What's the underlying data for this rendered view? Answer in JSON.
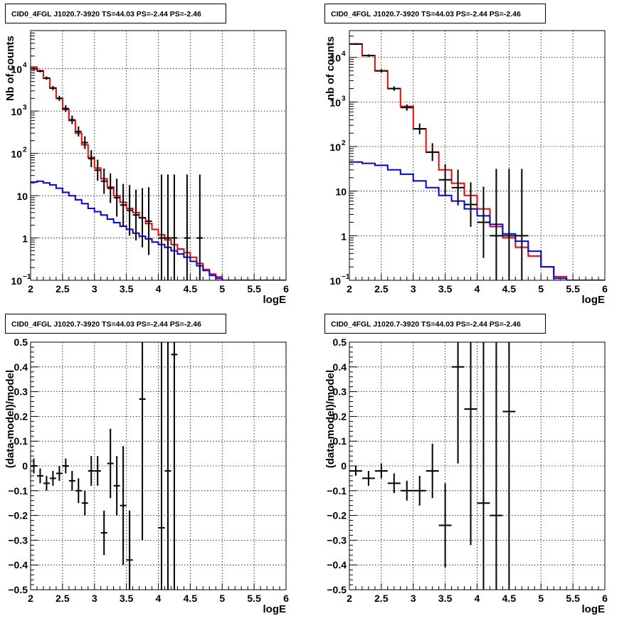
{
  "chart_data": [
    {
      "type": "line",
      "title": "CID0_4FGL J1020.7-3920 TS=44.03 PS=-2.44 PS=-2.46",
      "xlabel": "logE",
      "ylabel": "Nb of counts",
      "xlim": [
        2,
        6
      ],
      "ylim": [
        0.1,
        80000
      ],
      "yscale": "log",
      "grid": true,
      "x_ticks": [
        "2",
        "2.5",
        "3",
        "3.5",
        "4",
        "4.5",
        "5",
        "5.5",
        "6"
      ],
      "y_ticks": [
        {
          "v": 0.1,
          "label": "10",
          "sup": "−1"
        },
        {
          "v": 1,
          "label": "1",
          "sup": ""
        },
        {
          "v": 10,
          "label": "10",
          "sup": ""
        },
        {
          "v": 100,
          "label": "10",
          "sup": "2"
        },
        {
          "v": 1000,
          "label": "10",
          "sup": "3"
        },
        {
          "v": 10000,
          "label": "10",
          "sup": "4"
        }
      ],
      "series": [
        {
          "kind": "step",
          "color": "#ff0000",
          "edges": [
            2.0,
            2.1,
            2.2,
            2.3,
            2.4,
            2.5,
            2.6,
            2.7,
            2.8,
            2.9,
            3.0,
            3.1,
            3.2,
            3.3,
            3.4,
            3.5,
            3.6,
            3.7,
            3.8,
            3.9,
            4.0,
            4.1,
            4.2,
            4.3,
            4.4,
            4.5,
            4.6,
            4.7,
            4.8,
            4.9,
            5.0,
            5.1,
            5.2,
            5.3,
            5.4,
            5.5,
            5.6,
            5.7,
            5.8,
            5.9,
            6.0
          ],
          "values": [
            11000,
            9000,
            6000,
            3500,
            2000,
            1100,
            600,
            300,
            160,
            80,
            45,
            25,
            16,
            10,
            7,
            5,
            4,
            3,
            2.2,
            1.6,
            1.2,
            0.9,
            0.7,
            0.55,
            0.45,
            0.35,
            0.25,
            0.18,
            0.14,
            0.12,
            0.1,
            0.1,
            0.1,
            0.1,
            0.1,
            0.1,
            0.1,
            0.1,
            0.1,
            0.1
          ]
        },
        {
          "kind": "step",
          "color": "#0000ff",
          "edges": [
            2.0,
            2.1,
            2.2,
            2.3,
            2.4,
            2.5,
            2.6,
            2.7,
            2.8,
            2.9,
            3.0,
            3.1,
            3.2,
            3.3,
            3.4,
            3.5,
            3.6,
            3.7,
            3.8,
            3.9,
            4.0,
            4.1,
            4.2,
            4.3,
            4.4,
            4.5,
            4.6,
            4.7,
            4.8,
            4.9,
            5.0,
            5.1,
            5.2,
            5.3,
            5.4,
            5.5,
            5.6,
            5.7,
            5.8,
            5.9,
            6.0
          ],
          "values": [
            21,
            22,
            20,
            18,
            15,
            12,
            10,
            8,
            6.5,
            5,
            4.2,
            3.5,
            2.8,
            2.3,
            1.9,
            1.6,
            1.3,
            1.1,
            0.95,
            0.8,
            0.7,
            0.6,
            0.5,
            0.42,
            0.35,
            0.28,
            0.22,
            0.17,
            0.13,
            0.11,
            0.1,
            0.1,
            0.1,
            0.1,
            0.1,
            0.1,
            0.1,
            0.1,
            0.1,
            0.1
          ]
        },
        {
          "kind": "points",
          "color": "#000000",
          "x": [
            2.05,
            2.15,
            2.25,
            2.35,
            2.45,
            2.55,
            2.65,
            2.75,
            2.85,
            2.95,
            3.05,
            3.15,
            3.25,
            3.35,
            3.45,
            3.55,
            3.65,
            3.75,
            3.85,
            4.05,
            4.15,
            4.25,
            4.45,
            4.65
          ],
          "y": [
            10000,
            8800,
            6000,
            3500,
            2000,
            1150,
            620,
            330,
            180,
            75,
            40,
            22,
            15,
            9,
            6,
            4.5,
            3.5,
            3,
            2.5,
            1,
            1,
            1,
            1,
            1
          ],
          "xerr": 0.05,
          "yerr": [
            0.03,
            0.03,
            0.04,
            0.05,
            0.06,
            0.08,
            0.1,
            0.12,
            0.15,
            0.2,
            0.25,
            0.3,
            0.35,
            0.45,
            0.5,
            0.6,
            0.6,
            0.7,
            0.8,
            1.5,
            1.5,
            1.5,
            1.5,
            1.5
          ]
        }
      ]
    },
    {
      "type": "line",
      "title": "CID0_4FGL J1020.7-3920 TS=44.03 PS=-2.44 PS=-2.46",
      "xlabel": "logE",
      "ylabel": "nb of counts",
      "xlim": [
        2,
        6
      ],
      "ylim": [
        0.1,
        40000
      ],
      "yscale": "log",
      "grid": true,
      "x_ticks": [
        "2",
        "2.5",
        "3",
        "3.5",
        "4",
        "4.5",
        "5",
        "5.5",
        "6"
      ],
      "y_ticks": [
        {
          "v": 0.1,
          "label": "10",
          "sup": "−1"
        },
        {
          "v": 1,
          "label": "1",
          "sup": ""
        },
        {
          "v": 10,
          "label": "10",
          "sup": ""
        },
        {
          "v": 100,
          "label": "10",
          "sup": "2"
        },
        {
          "v": 1000,
          "label": "10",
          "sup": "3"
        },
        {
          "v": 10000,
          "label": "10",
          "sup": "4"
        }
      ],
      "series": [
        {
          "kind": "step",
          "color": "#ff0000",
          "edges": [
            2.0,
            2.2,
            2.4,
            2.6,
            2.8,
            3.0,
            3.2,
            3.4,
            3.6,
            3.8,
            4.0,
            4.2,
            4.4,
            4.6,
            4.8,
            5.0,
            5.2,
            5.4,
            5.6,
            5.8,
            6.0
          ],
          "values": [
            20000,
            11000,
            5000,
            2000,
            800,
            250,
            75,
            30,
            15,
            8,
            4,
            1.6,
            0.9,
            0.55,
            0.35,
            0.2,
            0.12,
            0.1,
            0.1,
            0.1
          ]
        },
        {
          "kind": "step",
          "color": "#0000ff",
          "edges": [
            2.0,
            2.2,
            2.4,
            2.6,
            2.8,
            3.0,
            3.2,
            3.4,
            3.6,
            3.8,
            4.0,
            4.2,
            4.4,
            4.6,
            4.8,
            5.0,
            5.2,
            5.4,
            5.6,
            5.8,
            6.0
          ],
          "values": [
            45,
            42,
            38,
            30,
            24,
            17,
            12,
            8,
            6,
            4,
            2.8,
            1.8,
            1.1,
            0.75,
            0.45,
            0.2,
            0.11,
            0.1,
            0.1,
            0.1
          ]
        },
        {
          "kind": "points",
          "color": "#000000",
          "x": [
            2.1,
            2.3,
            2.5,
            2.7,
            2.9,
            3.1,
            3.3,
            3.5,
            3.7,
            3.9,
            4.1,
            4.3,
            4.5,
            4.7
          ],
          "y": [
            20000,
            11000,
            5000,
            2000,
            750,
            250,
            75,
            18,
            12,
            5,
            2,
            1,
            1,
            1
          ],
          "xerr": 0.1,
          "yerr": [
            0.02,
            0.03,
            0.04,
            0.05,
            0.07,
            0.12,
            0.2,
            0.35,
            0.4,
            0.5,
            0.8,
            1.5,
            1.5,
            1.5
          ]
        }
      ]
    },
    {
      "type": "scatter",
      "title": "CID0_4FGL J1020.7-3920 TS=44.03 PS=-2.44 PS=-2.46",
      "xlabel": "logE",
      "ylabel": "(data-model)/model",
      "xlim": [
        2,
        6
      ],
      "ylim": [
        -0.5,
        0.5
      ],
      "grid": true,
      "x_ticks": [
        "2",
        "2.5",
        "3",
        "3.5",
        "4",
        "4.5",
        "5",
        "5.5",
        "6"
      ],
      "y_ticks": [
        "−0.5",
        "−0.4",
        "−0.3",
        "−0.2",
        "−0.1",
        "0",
        "0.1",
        "0.2",
        "0.3",
        "0.4",
        "0.5"
      ],
      "series": [
        {
          "kind": "points",
          "color": "#000000",
          "x": [
            2.05,
            2.15,
            2.25,
            2.35,
            2.45,
            2.55,
            2.65,
            2.75,
            2.85,
            2.95,
            3.05,
            3.15,
            3.25,
            3.35,
            3.45,
            3.55,
            3.75,
            4.05,
            4.15,
            4.25
          ],
          "y": [
            0.0,
            -0.04,
            -0.07,
            -0.05,
            -0.03,
            0.0,
            -0.06,
            -0.1,
            -0.15,
            -0.02,
            -0.02,
            -0.27,
            0.01,
            -0.08,
            -0.16,
            -0.38,
            0.27,
            -0.25,
            -0.02,
            0.45
          ],
          "xerr": 0.05,
          "yerr": [
            0.03,
            0.03,
            0.03,
            0.03,
            0.03,
            0.03,
            0.04,
            0.05,
            0.05,
            0.06,
            0.06,
            0.09,
            0.14,
            0.12,
            0.24,
            0.2,
            0.57,
            1.0,
            1.0,
            1.0
          ]
        }
      ]
    },
    {
      "type": "scatter",
      "title": "CID0_4FGL J1020.7-3920 TS=44.03 PS=-2.44 PS=-2.46",
      "xlabel": "logE",
      "ylabel": "(data-model)/model",
      "xlim": [
        2,
        6
      ],
      "ylim": [
        -0.5,
        0.5
      ],
      "grid": true,
      "x_ticks": [
        "2",
        "2.5",
        "3",
        "3.5",
        "4",
        "4.5",
        "5",
        "5.5",
        "6"
      ],
      "y_ticks": [
        "−0.5",
        "−0.4",
        "−0.3",
        "−0.2",
        "−0.1",
        "0",
        "0.1",
        "0.2",
        "0.3",
        "0.4",
        "0.5"
      ],
      "series": [
        {
          "kind": "points",
          "color": "#000000",
          "x": [
            2.1,
            2.3,
            2.5,
            2.7,
            2.9,
            3.1,
            3.3,
            3.5,
            3.7,
            3.9,
            4.1,
            4.3,
            4.5
          ],
          "y": [
            -0.02,
            -0.05,
            -0.02,
            -0.07,
            -0.1,
            -0.1,
            -0.02,
            -0.24,
            0.4,
            0.23,
            -0.15,
            -0.2,
            0.22
          ],
          "xerr": 0.1,
          "yerr": [
            0.02,
            0.03,
            0.03,
            0.04,
            0.04,
            0.06,
            0.11,
            0.17,
            0.39,
            0.55,
            1.0,
            1.0,
            1.0
          ]
        }
      ]
    }
  ]
}
